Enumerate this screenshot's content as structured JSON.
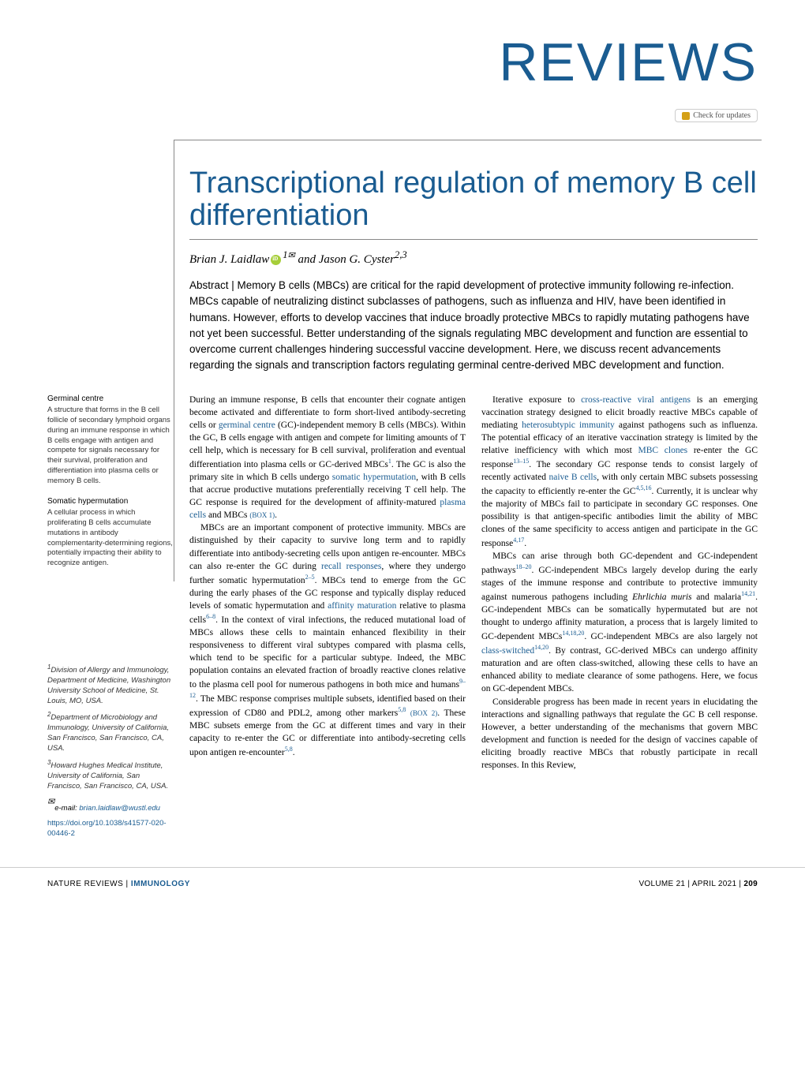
{
  "header": {
    "category": "REVIEWS",
    "update_text": "Check for updates"
  },
  "article": {
    "title": "Transcriptional regulation of memory B cell differentiation",
    "author1": "Brian J. Laidlaw",
    "author1_sup": "1",
    "author2": "Jason G. Cyster",
    "author2_sup": "2,3",
    "and_word": " and ",
    "abstract_label": "Abstract | ",
    "abstract": "Memory B cells (MBCs) are critical for the rapid development of protective immunity following re-infection. MBCs capable of neutralizing distinct subclasses of pathogens, such as influenza and HIV, have been identified in humans. However, efforts to develop vaccines that induce broadly protective MBCs to rapidly mutating pathogens have not yet been successful. Better understanding of the signals regulating MBC development and function are essential to overcome current challenges hindering successful vaccine development. Here, we discuss recent advancements regarding the signals and transcription factors regulating germinal centre-derived MBC development and function."
  },
  "glossary": {
    "term1": "Germinal centre",
    "def1": "A structure that forms in the B cell follicle of secondary lymphoid organs during an immune response in which B cells engage with antigen and compete for signals necessary for their survival, proliferation and differentiation into plasma cells or memory B cells.",
    "term2": "Somatic hypermutation",
    "def2": "A cellular process in which proliferating B cells accumulate mutations in antibody complementarity-determining regions, potentially impacting their ability to recognize antigen."
  },
  "affiliations": {
    "a1": "Division of Allergy and Immunology, Department of Medicine, Washington University School of Medicine, St. Louis, MO, USA.",
    "a1_sup": "1",
    "a2": "Department of Microbiology and Immunology, University of California, San Francisco, San Francisco, CA, USA.",
    "a2_sup": "2",
    "a3": "Howard Hughes Medical Institute, University of California, San Francisco, San Francisco, CA, USA.",
    "a3_sup": "3",
    "email_label": "e-mail: ",
    "email": "brian.laidlaw@wustl.edu",
    "doi": "https://doi.org/10.1038/s41577-020-00446-2"
  },
  "body": {
    "col1_p1a": "During an immune response, B cells that encounter their cognate antigen become activated and differentiate to form short-lived antibody-secreting cells or ",
    "col1_term1": "germinal centre",
    "col1_p1b": " (GC)-independent memory B cells (MBCs). Within the GC, B cells engage with antigen and compete for limiting amounts of T cell help, which is necessary for B cell survival, proliferation and eventual differentiation into plasma cells or GC-derived MBCs",
    "col1_ref1": "1",
    "col1_p1c": ". The GC is also the primary site in which B cells undergo ",
    "col1_term2": "somatic hypermutation",
    "col1_p1d": ", with B cells that accrue productive mutations preferentially receiving T cell help. The GC response is required for the development of affinity-matured ",
    "col1_term3": "plasma cells",
    "col1_p1e": " and MBCs ",
    "col1_box1": "(BOX 1)",
    "col1_p1f": ".",
    "col1_p2a": "MBCs are an important component of protective immunity. MBCs are distinguished by their capacity to survive long term and to rapidly differentiate into antibody-secreting cells upon antigen re-encounter. MBCs can also re-enter the GC during ",
    "col1_term4": "recall responses",
    "col1_p2b": ", where they undergo further somatic hypermutation",
    "col1_ref2": "2–5",
    "col1_p2c": ". MBCs tend to emerge from the GC during the early phases of the GC response and typically display reduced levels of somatic hypermutation and ",
    "col1_term5": "affinity maturation",
    "col1_p2d": " relative to plasma cells",
    "col1_ref3": "6–8",
    "col1_p2e": ". In the context of viral infections, the reduced mutational load of MBCs allows these cells to maintain enhanced flexibility in their responsiveness to different viral subtypes compared with plasma cells, which tend to be specific for a particular subtype. Indeed, the MBC population contains an elevated fraction of broadly reactive clones relative to the plasma cell pool for numerous pathogens in both mice and humans",
    "col1_ref4": "9–12",
    "col1_p2f": ". The MBC response comprises multiple subsets, identified based on their expression of CD80 and PDL2, among other markers",
    "col1_ref5": "5,8",
    "col1_p2g": " ",
    "col1_box2": "(BOX 2)",
    "col1_p2h": ". These MBC subsets emerge from the GC at different times and vary in their capacity to re-enter the GC or differentiate into antibody-secreting cells upon antigen re-encounter",
    "col1_ref6": "5,8",
    "col1_p2i": ".",
    "col2_p1a": "Iterative exposure to ",
    "col2_term1": "cross-reactive viral antigens",
    "col2_p1b": " is an emerging vaccination strategy designed to elicit broadly reactive MBCs capable of mediating ",
    "col2_term2": "heterosubtypic immunity",
    "col2_p1c": " against pathogens such as influenza. The potential efficacy of an iterative vaccination strategy is limited by the relative inefficiency with which most ",
    "col2_term3": "MBC clones",
    "col2_p1d": " re-enter the GC response",
    "col2_ref1": "13–15",
    "col2_p1e": ". The secondary GC response tends to consist largely of recently activated ",
    "col2_term4": "naive B cells",
    "col2_p1f": ", with only certain MBC subsets possessing the capacity to efficiently re-enter the GC",
    "col2_ref2": "4,5,16",
    "col2_p1g": ". Currently, it is unclear why the majority of MBCs fail to participate in secondary GC responses. One possibility is that antigen-specific antibodies limit the ability of MBC clones of the same specificity to access antigen and participate in the GC response",
    "col2_ref3": "4,17",
    "col2_p1h": ".",
    "col2_p2a": "MBCs can arise through both GC-dependent and GC-independent pathways",
    "col2_ref4": "18–20",
    "col2_p2b": ". GC-independent MBCs largely develop during the early stages of the immune response and contribute to protective immunity against numerous pathogens including ",
    "col2_em1": "Ehrlichia muris",
    "col2_p2c": " and malaria",
    "col2_ref5": "14,21",
    "col2_p2d": ". GC-independent MBCs can be somatically hypermutated but are not thought to undergo affinity maturation, a process that is largely limited to GC-dependent MBCs",
    "col2_ref6": "14,18,20",
    "col2_p2e": ". GC-independent MBCs are also largely not ",
    "col2_term5": "class-switched",
    "col2_ref7": "14,20",
    "col2_p2f": ". By contrast, GC-derived MBCs can undergo affinity maturation and are often class-switched, allowing these cells to have an enhanced ability to mediate clearance of some pathogens. Here, we focus on GC-dependent MBCs.",
    "col2_p3": "Considerable progress has been made in recent years in elucidating the interactions and signalling pathways that regulate the GC B cell response. However, a better understanding of the mechanisms that govern MBC development and function is needed for the design of vaccines capable of eliciting broadly reactive MBCs that robustly participate in recall responses. In this Review,"
  },
  "footer": {
    "journal_prefix": "NATURE REVIEWS | ",
    "journal_name": "IMMUNOLOGY",
    "volume_info": "VOLUME 21 | APRIL 2021 | ",
    "page": "209"
  }
}
